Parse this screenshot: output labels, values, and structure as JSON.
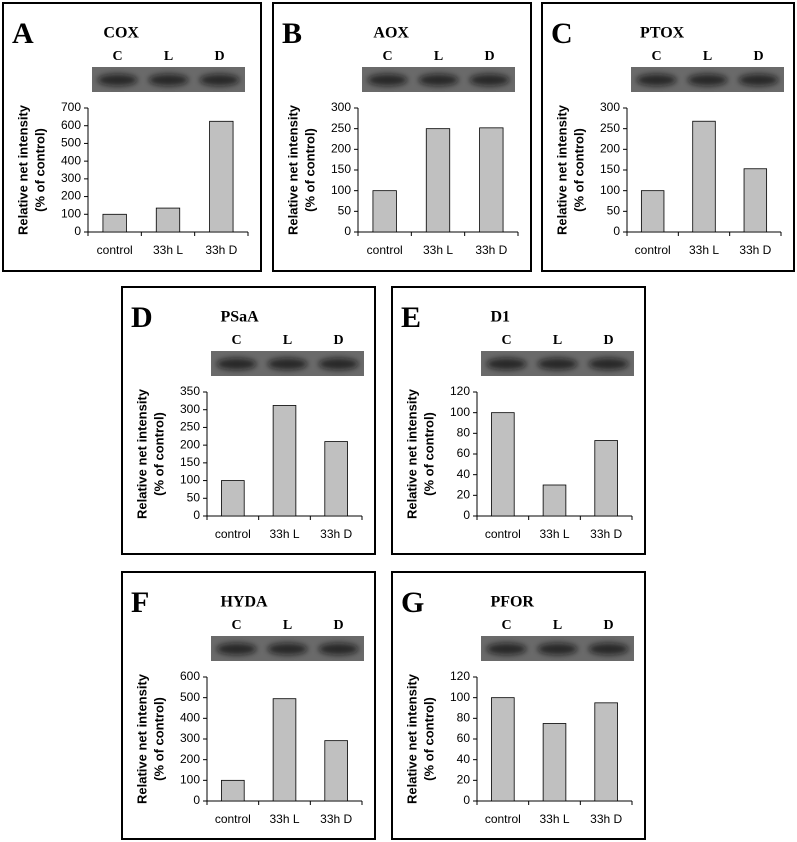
{
  "chart_data": [
    {
      "type": "bar",
      "panel": "A",
      "title": "COX",
      "lanes": [
        "C",
        "L",
        "D"
      ],
      "ylabel": [
        "Relative net intensity",
        "(% of control)"
      ],
      "categories": [
        "control",
        "33h L",
        "33h D"
      ],
      "values": [
        100,
        135,
        625
      ],
      "color": "#c0c0c0",
      "ylim": [
        0,
        700
      ],
      "yticks": [
        0,
        100,
        200,
        300,
        400,
        500,
        600,
        700
      ]
    },
    {
      "type": "bar",
      "panel": "B",
      "title": "AOX",
      "lanes": [
        "C",
        "L",
        "D"
      ],
      "ylabel": [
        "Relative net intensity",
        "(% of control)"
      ],
      "categories": [
        "control",
        "33h L",
        "33h D"
      ],
      "values": [
        100,
        250,
        252
      ],
      "color": "#c0c0c0",
      "ylim": [
        0,
        300
      ],
      "yticks": [
        0,
        50,
        100,
        150,
        200,
        250,
        300
      ]
    },
    {
      "type": "bar",
      "panel": "C",
      "title": "PTOX",
      "lanes": [
        "C",
        "L",
        "D"
      ],
      "ylabel": [
        "Relative net intensity",
        "(% of control)"
      ],
      "categories": [
        "control",
        "33h L",
        "33h D"
      ],
      "values": [
        100,
        268,
        153
      ],
      "color": "#c0c0c0",
      "ylim": [
        0,
        300
      ],
      "yticks": [
        0,
        50,
        100,
        150,
        200,
        250,
        300
      ]
    },
    {
      "type": "bar",
      "panel": "D",
      "title": "PSaA",
      "lanes": [
        "C",
        "L",
        "D"
      ],
      "ylabel": [
        "Relative net intensity",
        "(% of control)"
      ],
      "categories": [
        "control",
        "33h L",
        "33h D"
      ],
      "values": [
        100,
        312,
        210
      ],
      "color": "#c0c0c0",
      "ylim": [
        0,
        350
      ],
      "yticks": [
        0,
        50,
        100,
        150,
        200,
        250,
        300,
        350
      ]
    },
    {
      "type": "bar",
      "panel": "E",
      "title": "D1",
      "lanes": [
        "C",
        "L",
        "D"
      ],
      "ylabel": [
        "Relative net intensity",
        "(% of control)"
      ],
      "categories": [
        "control",
        "33h L",
        "33h D"
      ],
      "values": [
        100,
        30,
        73
      ],
      "color": "#c0c0c0",
      "ylim": [
        0,
        120
      ],
      "yticks": [
        0,
        20,
        40,
        60,
        80,
        100,
        120
      ]
    },
    {
      "type": "bar",
      "panel": "F",
      "title": "HYDA",
      "lanes": [
        "C",
        "L",
        "D"
      ],
      "ylabel": [
        "Relative net intensity",
        "(% of control)"
      ],
      "categories": [
        "control",
        "33h L",
        "33h D"
      ],
      "values": [
        100,
        495,
        292
      ],
      "color": "#c0c0c0",
      "ylim": [
        0,
        600
      ],
      "yticks": [
        0,
        100,
        200,
        300,
        400,
        500,
        600
      ]
    },
    {
      "type": "bar",
      "panel": "G",
      "title": "PFOR",
      "lanes": [
        "C",
        "L",
        "D"
      ],
      "ylabel": [
        "Relative net intensity",
        "(% of control)"
      ],
      "categories": [
        "control",
        "33h L",
        "33h D"
      ],
      "values": [
        100,
        75,
        95
      ],
      "color": "#c0c0c0",
      "ylim": [
        0,
        120
      ],
      "yticks": [
        0,
        20,
        40,
        60,
        80,
        100,
        120
      ]
    }
  ]
}
